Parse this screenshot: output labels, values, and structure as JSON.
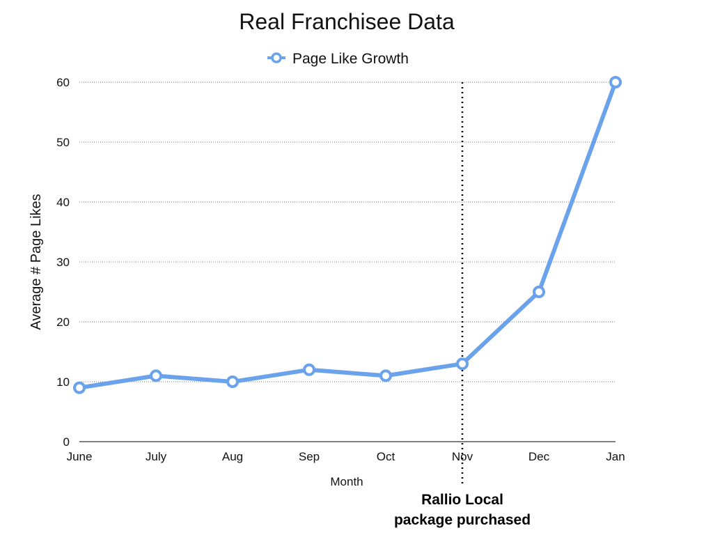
{
  "chart_data": {
    "type": "line",
    "title": "Real Franchisee Data",
    "xlabel": "Month",
    "ylabel": "Average # Page Likes",
    "categories": [
      "June",
      "July",
      "Aug",
      "Sep",
      "Oct",
      "Nov",
      "Dec",
      "Jan"
    ],
    "series": [
      {
        "name": "Page Like Growth",
        "values": [
          9,
          11,
          10,
          12,
          11,
          13,
          25,
          60
        ],
        "color": "#6aa3ec"
      }
    ],
    "ylim": [
      0,
      60
    ],
    "yticks": [
      "0",
      "10",
      "20",
      "30",
      "40",
      "50",
      "60"
    ],
    "grid": true,
    "legend": "top-center",
    "annotation": {
      "at_category": "Nov",
      "line_style": "dotted",
      "lines": [
        "Rallio Local",
        "package purchased"
      ]
    }
  }
}
